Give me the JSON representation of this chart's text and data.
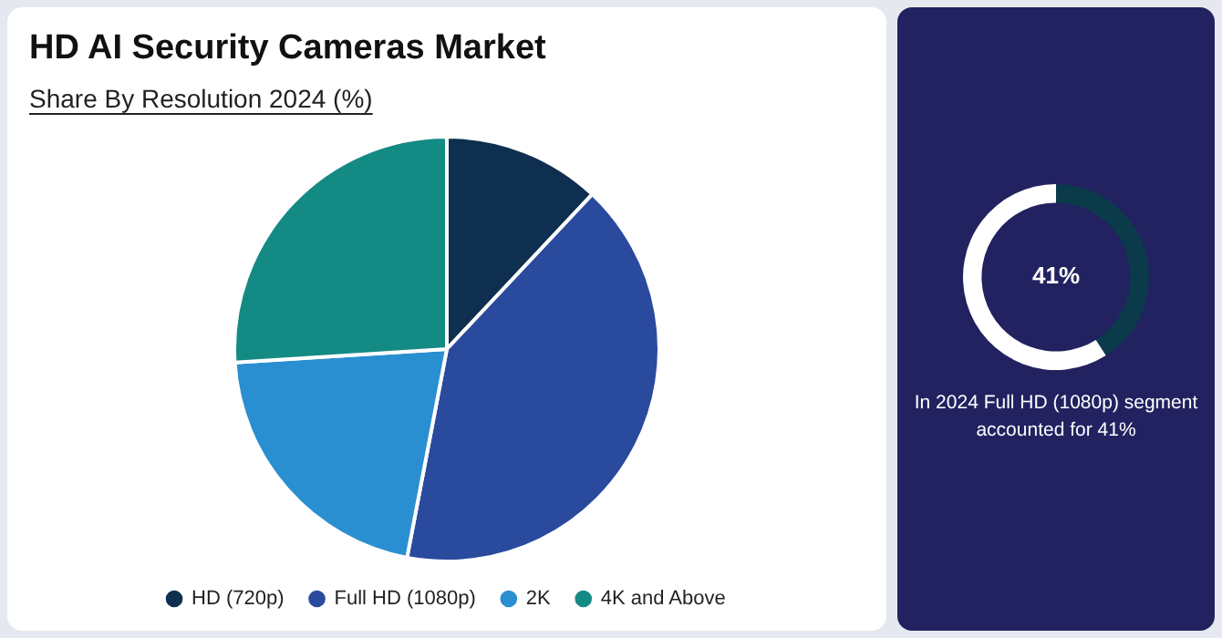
{
  "chart_data": [
    {
      "type": "pie",
      "title": "HD AI Security Cameras Market",
      "subtitle": "Share By Resolution 2024 (%)",
      "categories": [
        "HD (720p)",
        "Full HD (1080p)",
        "2K",
        "4K and Above"
      ],
      "values": [
        12,
        41,
        21,
        26
      ],
      "colors": [
        "#0e2f4f",
        "#2a4a9e",
        "#2a8fd0",
        "#148a85"
      ],
      "legend": "bottom"
    },
    {
      "type": "donut",
      "categories": [
        null,
        null
      ],
      "values": [
        41,
        59
      ],
      "colors": [
        "#0b3a4a",
        "#ffffff"
      ],
      "annotations": [
        "41%",
        "In 2024 Full HD (1080p) segment accounted for 41%"
      ],
      "legend": false
    }
  ]
}
